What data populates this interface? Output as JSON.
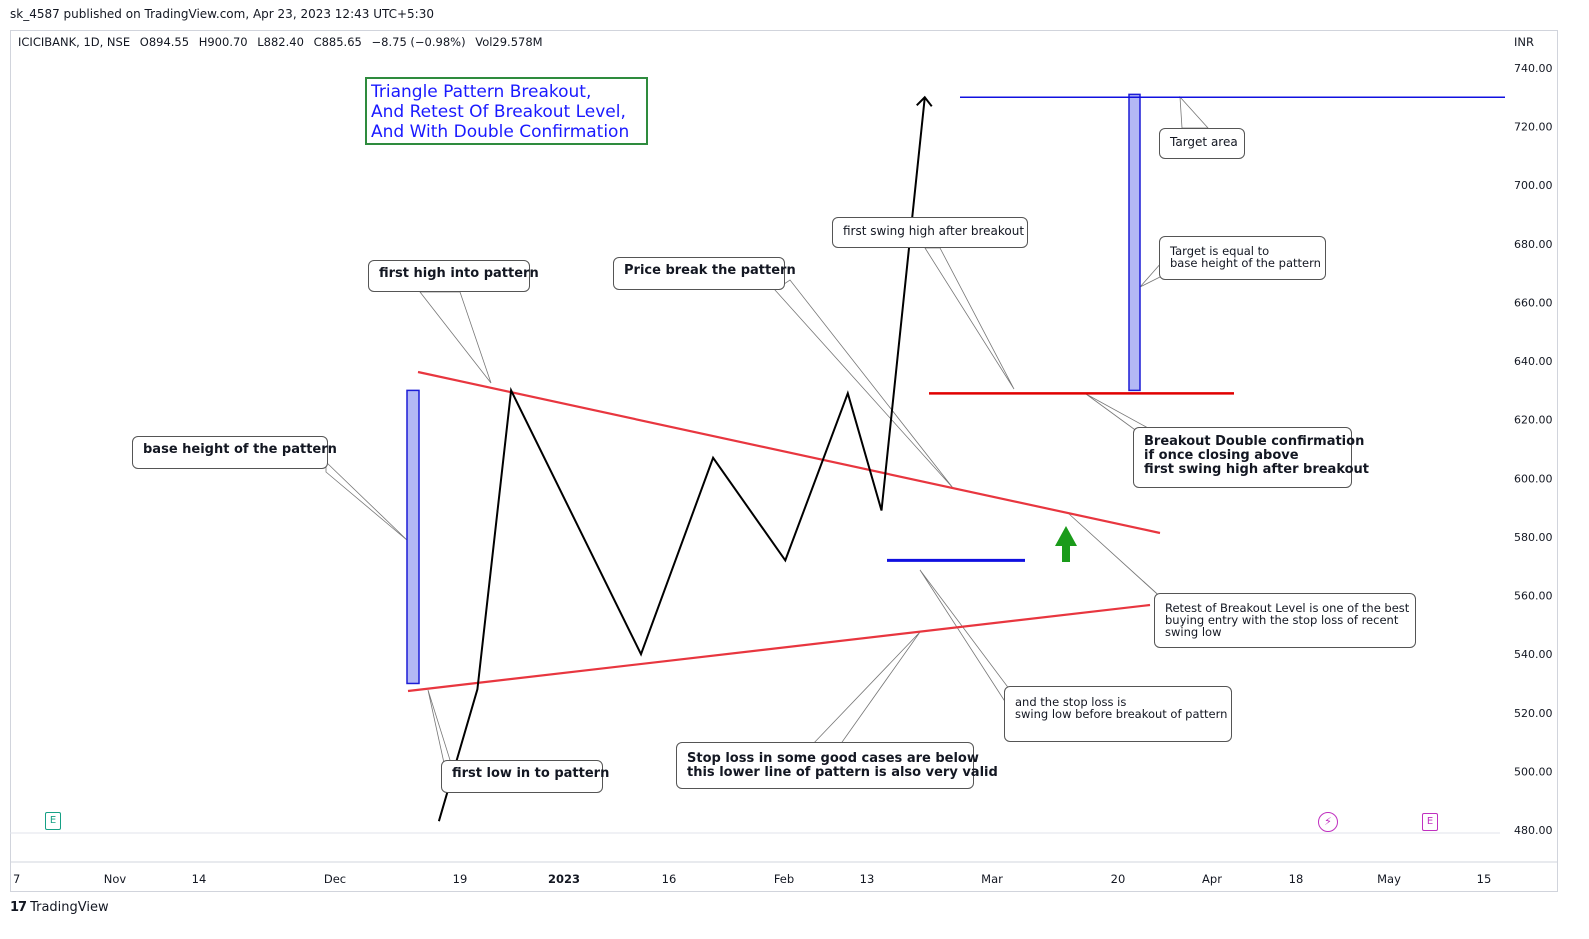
{
  "header": {
    "published": "sk_4587 published on TradingView.com, Apr 23, 2023 12:43 UTC+5:30"
  },
  "legend": {
    "symbol": "ICICIBANK, 1D, NSE",
    "open": "O894.55",
    "high": "H900.70",
    "low": "L882.40",
    "close": "C885.65",
    "change": "−8.75 (−0.98%)",
    "volume": "Vol29.578M"
  },
  "currency": "INR",
  "title_box": {
    "lines": [
      "Triangle Pattern Breakout,",
      "And  Retest Of Breakout Level,",
      "And With Double Confirmation"
    ],
    "text_color": "#1a1aff",
    "border_color": "#2e8b3e"
  },
  "callouts": {
    "first_high": "first high into pattern",
    "price_break": "Price break the pattern",
    "first_swing_high": "first swing high after breakout",
    "target_area": "Target area",
    "target_equal": [
      "Target is equal to",
      "base height of the pattern"
    ],
    "base_height": "base height of the pattern",
    "breakout_double": [
      "Breakout Double confirmation",
      "if once closing above",
      "first swing high after breakout"
    ],
    "retest": [
      "Retest of Breakout Level is one of the best",
      "buying entry with the stop loss of recent",
      "swing low"
    ],
    "stop_loss_swing": [
      "and the stop loss is",
      "swing low before breakout of pattern"
    ],
    "stop_loss_lower": [
      "Stop loss in some good cases are below",
      "this lower line of pattern is also very valid"
    ],
    "first_low": "first low in to pattern"
  },
  "footer": {
    "brand": "TradingView",
    "logo_text": "17"
  },
  "badges": {
    "earnings": "E",
    "dividend_icon": "lightning-icon"
  },
  "colors": {
    "trendline": "#e8363f",
    "price_path": "#000000",
    "blue_level": "#1010e0",
    "height_bar_fill": "#b3b8f5",
    "height_bar_stroke": "#1c1cd6",
    "arrow_up": "#1a9b1a",
    "earnings_badge": "#16a085",
    "purple_badge": "#c030c0"
  },
  "chart_data": {
    "type": "line",
    "title": "",
    "xlabel": "",
    "ylabel": "",
    "y_axis": {
      "ticks": [
        "740.00",
        "720.00",
        "700.00",
        "680.00",
        "660.00",
        "640.00",
        "620.00",
        "600.00",
        "580.00",
        "560.00",
        "540.00",
        "520.00",
        "500.00",
        "480.00"
      ],
      "ylim": [
        480,
        745
      ]
    },
    "x_axis": {
      "ticks": [
        "7",
        "Nov",
        "14",
        "Dec",
        "19",
        "2023",
        "16",
        "Feb",
        "13",
        "Mar",
        "20",
        "Apr",
        "18",
        "May",
        "15"
      ]
    },
    "series": [
      {
        "points": [
          {
            "x": "2022-12-06",
            "y": 483
          },
          {
            "x": "2022-12-14",
            "y": 528
          },
          {
            "x": "2022-12-21",
            "y": 630
          },
          {
            "x": "2023-01-17",
            "y": 540
          },
          {
            "x": "2023-02-01",
            "y": 607
          },
          {
            "x": "2023-02-16",
            "y": 572
          },
          {
            "x": "2023-03-01",
            "y": 629
          },
          {
            "x": "2023-03-08",
            "y": 589
          },
          {
            "x": "2023-03-17",
            "y": 730
          }
        ]
      }
    ],
    "upper_trendline": [
      {
        "x": "2022-12-13",
        "y": 636
      },
      {
        "x": "2023-03-25",
        "y": 581
      }
    ],
    "lower_trendline": [
      {
        "x": "2022-12-12",
        "y": 528
      },
      {
        "x": "2023-03-25",
        "y": 558
      }
    ],
    "levels": {
      "target": 730,
      "breakout_confirmation": 629,
      "swing_low": 572
    },
    "base_height_bar": {
      "from": 530,
      "to": 630
    },
    "target_height_bar": {
      "from": 630,
      "to": 731
    }
  }
}
